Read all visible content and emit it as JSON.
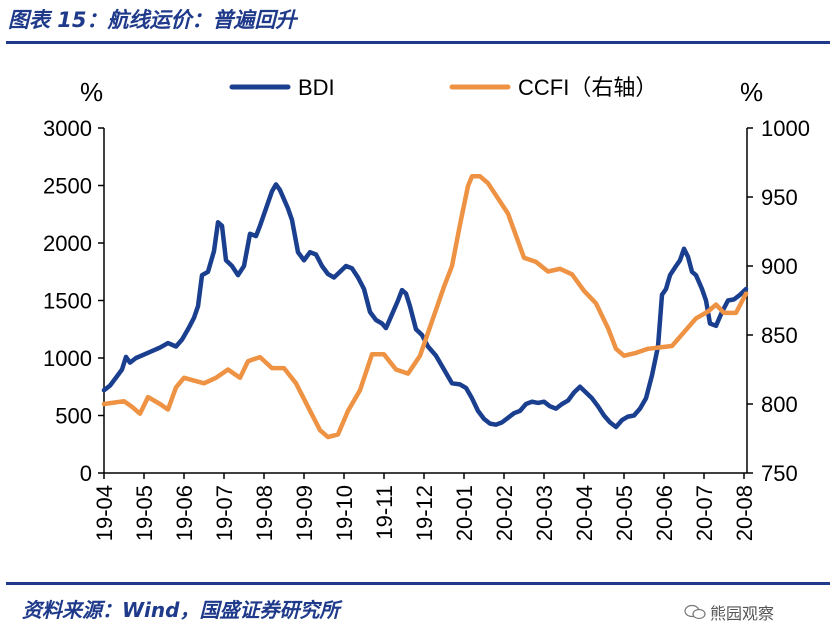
{
  "header": {
    "title": "图表 15：航线运价：普遍回升"
  },
  "footer": {
    "source": "资料来源：Wind，国盛证券研究所",
    "watermark": "熊园观察"
  },
  "colors": {
    "brand": "#1f3a8a",
    "bdi": "#1b3f8f",
    "ccfi": "#ee9244"
  },
  "chart_data": {
    "type": "line",
    "title": "",
    "left_unit": "%",
    "right_unit": "%",
    "ylim": [
      0,
      3000
    ],
    "ylim_right": [
      750,
      1000
    ],
    "y_ticks": [
      "0",
      "500",
      "1000",
      "1500",
      "2000",
      "2500",
      "3000"
    ],
    "y_ticks_right": [
      "750",
      "800",
      "850",
      "900",
      "950",
      "1000"
    ],
    "x_ticks": [
      "19-04",
      "19-05",
      "19-06",
      "19-07",
      "19-08",
      "19-09",
      "19-10",
      "19-11",
      "19-12",
      "20-01",
      "20-02",
      "20-03",
      "20-04",
      "20-05",
      "20-06",
      "20-07",
      "20-08"
    ],
    "x_range": [
      0,
      16.05
    ],
    "series": [
      {
        "name": "BDI",
        "axis": "left",
        "color": "#1b3f8f",
        "points": [
          [
            0.0,
            720
          ],
          [
            0.15,
            760
          ],
          [
            0.3,
            830
          ],
          [
            0.45,
            900
          ],
          [
            0.55,
            1010
          ],
          [
            0.65,
            960
          ],
          [
            0.8,
            1000
          ],
          [
            1.0,
            1030
          ],
          [
            1.2,
            1060
          ],
          [
            1.4,
            1090
          ],
          [
            1.6,
            1130
          ],
          [
            1.8,
            1100
          ],
          [
            1.95,
            1160
          ],
          [
            2.1,
            1250
          ],
          [
            2.25,
            1350
          ],
          [
            2.35,
            1450
          ],
          [
            2.45,
            1720
          ],
          [
            2.6,
            1750
          ],
          [
            2.75,
            1930
          ],
          [
            2.85,
            2180
          ],
          [
            2.95,
            2150
          ],
          [
            3.05,
            1850
          ],
          [
            3.2,
            1800
          ],
          [
            3.35,
            1720
          ],
          [
            3.5,
            1800
          ],
          [
            3.65,
            2080
          ],
          [
            3.8,
            2060
          ],
          [
            3.9,
            2150
          ],
          [
            4.0,
            2250
          ],
          [
            4.1,
            2350
          ],
          [
            4.2,
            2450
          ],
          [
            4.3,
            2510
          ],
          [
            4.4,
            2460
          ],
          [
            4.5,
            2380
          ],
          [
            4.6,
            2300
          ],
          [
            4.7,
            2200
          ],
          [
            4.85,
            1920
          ],
          [
            5.0,
            1850
          ],
          [
            5.15,
            1920
          ],
          [
            5.3,
            1900
          ],
          [
            5.45,
            1800
          ],
          [
            5.6,
            1730
          ],
          [
            5.75,
            1700
          ],
          [
            5.9,
            1750
          ],
          [
            6.05,
            1800
          ],
          [
            6.2,
            1780
          ],
          [
            6.35,
            1700
          ],
          [
            6.5,
            1600
          ],
          [
            6.65,
            1400
          ],
          [
            6.8,
            1330
          ],
          [
            6.95,
            1300
          ],
          [
            7.05,
            1260
          ],
          [
            7.2,
            1380
          ],
          [
            7.35,
            1500
          ],
          [
            7.45,
            1590
          ],
          [
            7.55,
            1560
          ],
          [
            7.65,
            1450
          ],
          [
            7.8,
            1250
          ],
          [
            7.95,
            1200
          ],
          [
            8.1,
            1100
          ],
          [
            8.3,
            1020
          ],
          [
            8.5,
            900
          ],
          [
            8.7,
            780
          ],
          [
            8.9,
            770
          ],
          [
            9.05,
            740
          ],
          [
            9.2,
            650
          ],
          [
            9.35,
            540
          ],
          [
            9.5,
            470
          ],
          [
            9.65,
            430
          ],
          [
            9.8,
            420
          ],
          [
            9.95,
            440
          ],
          [
            10.1,
            480
          ],
          [
            10.25,
            520
          ],
          [
            10.4,
            540
          ],
          [
            10.55,
            600
          ],
          [
            10.7,
            620
          ],
          [
            10.85,
            610
          ],
          [
            11.0,
            620
          ],
          [
            11.15,
            580
          ],
          [
            11.3,
            560
          ],
          [
            11.45,
            600
          ],
          [
            11.6,
            630
          ],
          [
            11.75,
            700
          ],
          [
            11.9,
            750
          ],
          [
            12.05,
            700
          ],
          [
            12.2,
            650
          ],
          [
            12.35,
            580
          ],
          [
            12.5,
            500
          ],
          [
            12.65,
            440
          ],
          [
            12.8,
            400
          ],
          [
            12.95,
            460
          ],
          [
            13.1,
            490
          ],
          [
            13.25,
            500
          ],
          [
            13.4,
            560
          ],
          [
            13.55,
            650
          ],
          [
            13.7,
            850
          ],
          [
            13.85,
            1100
          ],
          [
            13.95,
            1550
          ],
          [
            14.05,
            1600
          ],
          [
            14.15,
            1720
          ],
          [
            14.3,
            1800
          ],
          [
            14.4,
            1850
          ],
          [
            14.5,
            1950
          ],
          [
            14.6,
            1880
          ],
          [
            14.7,
            1750
          ],
          [
            14.8,
            1720
          ],
          [
            14.95,
            1600
          ],
          [
            15.05,
            1500
          ],
          [
            15.15,
            1300
          ],
          [
            15.3,
            1280
          ],
          [
            15.45,
            1400
          ],
          [
            15.6,
            1500
          ],
          [
            15.75,
            1510
          ],
          [
            15.9,
            1550
          ],
          [
            16.05,
            1600
          ]
        ]
      },
      {
        "name": "CCFI（右轴）",
        "axis": "right",
        "color": "#ee9244",
        "points": [
          [
            0.0,
            800
          ],
          [
            0.5,
            802
          ],
          [
            0.7,
            798
          ],
          [
            0.9,
            793
          ],
          [
            1.1,
            805
          ],
          [
            1.4,
            800
          ],
          [
            1.6,
            796
          ],
          [
            1.8,
            812
          ],
          [
            2.0,
            819
          ],
          [
            2.5,
            815
          ],
          [
            2.8,
            819
          ],
          [
            3.1,
            825
          ],
          [
            3.4,
            819
          ],
          [
            3.6,
            831
          ],
          [
            3.9,
            834
          ],
          [
            4.2,
            826
          ],
          [
            4.5,
            826
          ],
          [
            4.8,
            815
          ],
          [
            5.1,
            798
          ],
          [
            5.4,
            781
          ],
          [
            5.6,
            776
          ],
          [
            5.85,
            778
          ],
          [
            6.1,
            795
          ],
          [
            6.4,
            810
          ],
          [
            6.7,
            836
          ],
          [
            7.0,
            836
          ],
          [
            7.3,
            825
          ],
          [
            7.6,
            822
          ],
          [
            7.9,
            835
          ],
          [
            8.2,
            860
          ],
          [
            8.5,
            885
          ],
          [
            8.7,
            900
          ],
          [
            8.9,
            930
          ],
          [
            9.1,
            958
          ],
          [
            9.2,
            965
          ],
          [
            9.4,
            965
          ],
          [
            9.6,
            960
          ],
          [
            10.1,
            938
          ],
          [
            10.5,
            906
          ],
          [
            10.8,
            903
          ],
          [
            11.1,
            896
          ],
          [
            11.4,
            898
          ],
          [
            11.7,
            894
          ],
          [
            12.0,
            882
          ],
          [
            12.3,
            873
          ],
          [
            12.6,
            855
          ],
          [
            12.8,
            840
          ],
          [
            13.0,
            835
          ],
          [
            13.3,
            837
          ],
          [
            13.6,
            840
          ],
          [
            13.9,
            841
          ],
          [
            14.2,
            842
          ],
          [
            14.5,
            852
          ],
          [
            14.8,
            862
          ],
          [
            15.1,
            867
          ],
          [
            15.3,
            872
          ],
          [
            15.5,
            866
          ],
          [
            15.8,
            866
          ],
          [
            16.05,
            880
          ]
        ]
      }
    ]
  }
}
